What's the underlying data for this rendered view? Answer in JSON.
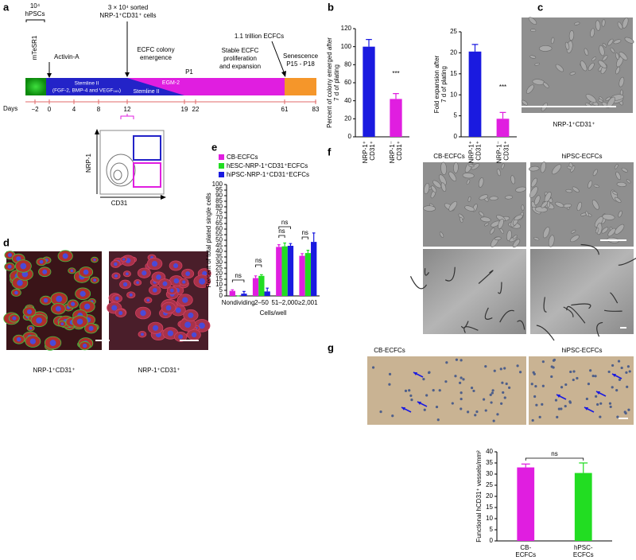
{
  "panel_labels": [
    "a",
    "b",
    "c",
    "d",
    "e",
    "f",
    "g"
  ],
  "timeline": {
    "start": [
      "10⁴",
      "hPSCs"
    ],
    "medium_start": "mTeSR1",
    "activin": "Activin-A",
    "sorted": [
      "3 × 10⁴ sorted",
      "NRP-1⁺CD31⁺ cells"
    ],
    "colony": [
      "ECFC colony",
      "emergence"
    ],
    "p1": "P1",
    "stable": [
      "Stable ECFC",
      "proliferation",
      "and expansion"
    ],
    "trillion": "1.1 trillion ECFCs",
    "senescence": [
      "Senescence",
      "P15 - P18"
    ],
    "stemline_full": [
      "Stemline II",
      "(FGF-2, BMP-4 and VEGF₁₆₅)"
    ],
    "egm2": "EGM-2",
    "stemline": "Stemline II",
    "days_label": "Days",
    "days": [
      "−2",
      "0",
      "4",
      "8",
      "12",
      "19",
      "22",
      "61",
      "83"
    ],
    "flow_y": "NRP-1",
    "flow_x": "CD31"
  },
  "chart_data": [
    {
      "type": "bar",
      "ylabel": [
        "Percent of colony emerged after",
        "7 d of plating"
      ],
      "categories": [
        [
          "NRP-1⁺",
          "CD31⁺"
        ],
        [
          "NRP-1⁻",
          "CD31⁺"
        ]
      ],
      "values": [
        100,
        42
      ],
      "errors": [
        8,
        6
      ],
      "colors": [
        "#1a1ae0",
        "#e01ee0"
      ],
      "ylim": [
        0,
        120
      ],
      "yticks": [
        0,
        20,
        40,
        60,
        80,
        100,
        120
      ],
      "annotations": [
        "***"
      ]
    },
    {
      "type": "bar",
      "ylabel": [
        "Fold expansion after",
        "7 d of plating"
      ],
      "categories": [
        [
          "NRP-1⁺",
          "CD31⁺"
        ],
        [
          "NRP-1⁻",
          "CD31⁺"
        ]
      ],
      "values": [
        20.3,
        4.3
      ],
      "errors": [
        1.7,
        1.5
      ],
      "colors": [
        "#1a1ae0",
        "#e01ee0"
      ],
      "ylim": [
        0,
        25
      ],
      "yticks": [
        0,
        5,
        10,
        15,
        20,
        25
      ],
      "annotations": [
        "***"
      ]
    },
    {
      "type": "bar",
      "ylabel": "Percent of total plated single cells",
      "xlabel": "Cells/well",
      "categories": [
        "Nondividing",
        "2–50",
        "51–2,000",
        "≥2,001"
      ],
      "series": [
        {
          "name": "CB-ECFCs",
          "color": "#e01ee0",
          "values": [
            4.5,
            16,
            44,
            36
          ],
          "errors": [
            1,
            2,
            2,
            2
          ]
        },
        {
          "name": "hESC-NRP-1⁺CD31⁺ECFCs",
          "color": "#22dd22",
          "values": [
            0,
            18,
            44.5,
            38.5
          ],
          "errors": [
            0,
            1,
            3,
            2.5
          ]
        },
        {
          "name": "hiPSC-NRP-1⁺CD31⁺ECFCs",
          "color": "#1a1ae0",
          "values": [
            2,
            4,
            45,
            48.5
          ],
          "errors": [
            2,
            3,
            2,
            8
          ]
        }
      ],
      "ylim": [
        0,
        100
      ],
      "yticks": [
        0,
        5,
        10,
        15,
        20,
        25,
        30,
        35,
        40,
        45,
        50,
        55,
        60,
        65,
        70,
        75,
        80,
        85,
        90,
        95,
        100
      ],
      "annotations": [
        "ns",
        "ns",
        "ns",
        "ns",
        "ns"
      ]
    },
    {
      "type": "bar",
      "ylabel": "Functional hCD31⁺ vessels/mm²",
      "categories": [
        [
          "CB-",
          "ECFCs"
        ],
        [
          "hPSC-",
          "ECFCs"
        ]
      ],
      "values": [
        33,
        30.5
      ],
      "errors": [
        1.5,
        4.5
      ],
      "colors": [
        "#e01ee0",
        "#22dd22"
      ],
      "ylim": [
        0,
        40
      ],
      "yticks": [
        0,
        5,
        10,
        15,
        20,
        25,
        30,
        35,
        40
      ],
      "annotations": [
        "ns"
      ]
    }
  ],
  "panel_c": {
    "caption": "NRP-1⁺CD31⁺"
  },
  "panel_d": {
    "captions": [
      "NRP-1⁺CD31⁺",
      "NRP-1⁺CD31⁺"
    ]
  },
  "panel_f": {
    "columns": [
      "CB-ECFCs",
      "hiPSC-ECFCs"
    ]
  },
  "panel_g": {
    "columns": [
      "CB-ECFCs",
      "hiPSC-ECFCs"
    ]
  }
}
